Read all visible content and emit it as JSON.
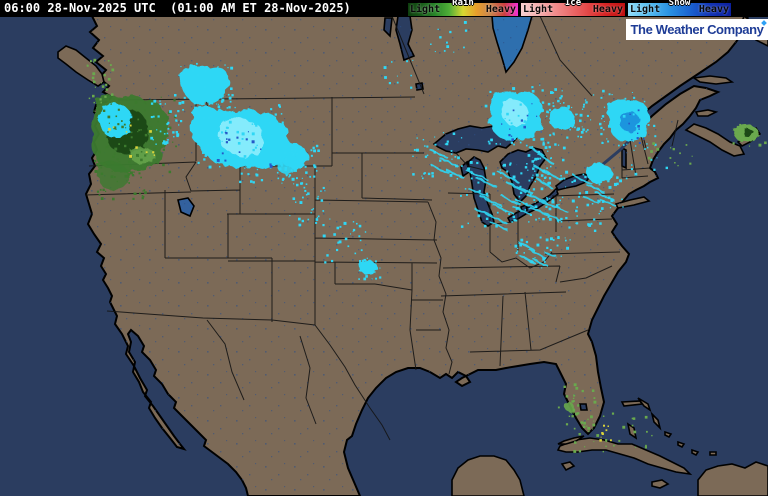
{
  "header": {
    "timestamp": "06:00 28-Nov-2025 UTC  (01:00 AM ET 28-Nov-2025)",
    "legend": {
      "rain": {
        "name": "Rain",
        "light": "Light",
        "heavy": "Heavy",
        "gradient": [
          "#0d3d0d",
          "#1a5c1a",
          "#2a872a",
          "#4fae38",
          "#d8d832",
          "#e89e2c",
          "#c8854e",
          "#cc3f3f",
          "#f32fd4"
        ]
      },
      "ice": {
        "name": "Ice",
        "light": "Light",
        "heavy": "Heavy",
        "gradient": [
          "#f8d0d0",
          "#f4a8a8",
          "#ee7e7e",
          "#e65151",
          "#d62626",
          "#c01010"
        ]
      },
      "snow": {
        "name": "Snow",
        "light": "Light",
        "heavy": "Heavy",
        "gradient": [
          "#8fdcf8",
          "#55bdf2",
          "#2a92e2",
          "#1b63cf",
          "#1334b4",
          "#0b1f9e"
        ]
      }
    },
    "brand": "The Weather Company"
  },
  "map": {
    "radar_areas": [
      {
        "region": "Washington / Oregon coast and Cascades",
        "type": "rain"
      },
      {
        "region": "British Columbia coast",
        "type": "light rain"
      },
      {
        "region": "Northern Idaho / Eastern Washington",
        "type": "snow"
      },
      {
        "region": "Montana (large area)",
        "type": "snow"
      },
      {
        "region": "Wyoming / Black Hills / Nebraska plains",
        "type": "scattered snow"
      },
      {
        "region": "Minnesota / Wisconsin / Lake Michigan",
        "type": "lake-effect snow"
      },
      {
        "region": "Central Ontario",
        "type": "snow"
      },
      {
        "region": "Southern Quebec / Montreal",
        "type": "snow"
      },
      {
        "region": "Upstate New York / Pennsylvania / West Virginia",
        "type": "lake-effect snow"
      },
      {
        "region": "Florida east coast / Bahamas / Cuba",
        "type": "light rain"
      },
      {
        "region": "Atlantic southeast of Nova Scotia",
        "type": "rain"
      }
    ]
  },
  "colors": {
    "bar": "#000000",
    "land": "#7c6a57",
    "ocean": "#2b3d60",
    "jamesbay": "#2e6fae",
    "saltlake": "#33619e",
    "border": "#000000",
    "stateline": "#141414",
    "snow": "#2fd7f5",
    "snowlight": "#93eefd",
    "snowdark": "#1b85d8",
    "snowdeep": "#2559c8",
    "rain": "#3c7a2e",
    "raindark": "#1d4a18",
    "rainlight": "#6aa94e",
    "rainyellow": "#d9d33b",
    "logoblue": "#1e3c96",
    "logodot": "#2fa1f5"
  }
}
